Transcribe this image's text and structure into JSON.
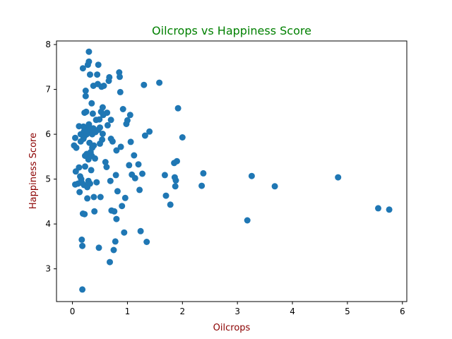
{
  "chart_data": {
    "type": "scatter",
    "title": "Oilcrops vs Happiness Score",
    "xlabel": "Oilcrops",
    "ylabel": "Happiness Score",
    "xlim": [
      -0.29,
      6.08
    ],
    "ylim": [
      2.27,
      8.08
    ],
    "xticks": [
      0,
      1,
      2,
      3,
      4,
      5,
      6
    ],
    "yticks": [
      3,
      4,
      5,
      6,
      7,
      8
    ],
    "grid": false,
    "colors": {
      "points": "#1f77b4",
      "title": "#008000",
      "axis_labels": "#8b0000",
      "axes": "#000000"
    },
    "points": [
      [
        0.03,
        5.75
      ],
      [
        0.05,
        5.92
      ],
      [
        0.06,
        5.17
      ],
      [
        0.05,
        4.88
      ],
      [
        0.07,
        5.7
      ],
      [
        0.1,
        4.9
      ],
      [
        0.12,
        6.18
      ],
      [
        0.12,
        5.26
      ],
      [
        0.13,
        4.71
      ],
      [
        0.14,
        5.06
      ],
      [
        0.15,
        6.0
      ],
      [
        0.15,
        5.84
      ],
      [
        0.16,
        5.0
      ],
      [
        0.17,
        4.92
      ],
      [
        0.17,
        3.65
      ],
      [
        0.18,
        3.51
      ],
      [
        0.18,
        2.54
      ],
      [
        0.19,
        4.23
      ],
      [
        0.19,
        7.47
      ],
      [
        0.2,
        6.17
      ],
      [
        0.2,
        5.9
      ],
      [
        0.21,
        6.06
      ],
      [
        0.21,
        4.87
      ],
      [
        0.22,
        6.48
      ],
      [
        0.22,
        5.96
      ],
      [
        0.22,
        4.22
      ],
      [
        0.23,
        5.28
      ],
      [
        0.23,
        5.52
      ],
      [
        0.24,
        6.85
      ],
      [
        0.24,
        6.97
      ],
      [
        0.25,
        6.5
      ],
      [
        0.25,
        6.13
      ],
      [
        0.26,
        6.0
      ],
      [
        0.26,
        5.56
      ],
      [
        0.27,
        4.82
      ],
      [
        0.27,
        4.57
      ],
      [
        0.28,
        7.55
      ],
      [
        0.28,
        6.07
      ],
      [
        0.29,
        5.44
      ],
      [
        0.29,
        4.96
      ],
      [
        0.3,
        7.84
      ],
      [
        0.3,
        7.62
      ],
      [
        0.3,
        6.22
      ],
      [
        0.31,
        6.15
      ],
      [
        0.31,
        5.81
      ],
      [
        0.32,
        4.9
      ],
      [
        0.32,
        7.33
      ],
      [
        0.33,
        6.1
      ],
      [
        0.33,
        5.6
      ],
      [
        0.34,
        5.2
      ],
      [
        0.35,
        6.69
      ],
      [
        0.35,
        5.52
      ],
      [
        0.36,
        6.0
      ],
      [
        0.36,
        5.7
      ],
      [
        0.37,
        6.46
      ],
      [
        0.38,
        7.08
      ],
      [
        0.38,
        6.13
      ],
      [
        0.39,
        5.75
      ],
      [
        0.39,
        4.6
      ],
      [
        0.4,
        4.28
      ],
      [
        0.41,
        5.46
      ],
      [
        0.42,
        6.05
      ],
      [
        0.43,
        6.32
      ],
      [
        0.44,
        4.93
      ],
      [
        0.45,
        7.33
      ],
      [
        0.46,
        7.12
      ],
      [
        0.47,
        7.55
      ],
      [
        0.47,
        6.1
      ],
      [
        0.48,
        3.47
      ],
      [
        0.49,
        6.33
      ],
      [
        0.5,
        6.15
      ],
      [
        0.5,
        5.79
      ],
      [
        0.51,
        4.6
      ],
      [
        0.52,
        6.5
      ],
      [
        0.53,
        7.06
      ],
      [
        0.54,
        5.88
      ],
      [
        0.55,
        6.6
      ],
      [
        0.55,
        6.01
      ],
      [
        0.56,
        6.43
      ],
      [
        0.57,
        7.08
      ],
      [
        0.6,
        5.38
      ],
      [
        0.62,
        5.27
      ],
      [
        0.63,
        6.48
      ],
      [
        0.64,
        6.2
      ],
      [
        0.66,
        7.19
      ],
      [
        0.67,
        7.27
      ],
      [
        0.68,
        3.15
      ],
      [
        0.69,
        4.96
      ],
      [
        0.7,
        6.32
      ],
      [
        0.7,
        5.9
      ],
      [
        0.71,
        4.3
      ],
      [
        0.73,
        5.84
      ],
      [
        0.75,
        3.42
      ],
      [
        0.76,
        4.28
      ],
      [
        0.78,
        3.61
      ],
      [
        0.79,
        5.09
      ],
      [
        0.8,
        5.64
      ],
      [
        0.8,
        4.11
      ],
      [
        0.82,
        4.73
      ],
      [
        0.85,
        7.38
      ],
      [
        0.86,
        7.28
      ],
      [
        0.87,
        6.94
      ],
      [
        0.88,
        5.72
      ],
      [
        0.9,
        4.4
      ],
      [
        0.92,
        6.56
      ],
      [
        0.94,
        3.81
      ],
      [
        0.96,
        4.58
      ],
      [
        0.98,
        6.23
      ],
      [
        1.0,
        6.31
      ],
      [
        1.03,
        5.31
      ],
      [
        1.05,
        6.43
      ],
      [
        1.06,
        5.83
      ],
      [
        1.08,
        5.1
      ],
      [
        1.12,
        5.53
      ],
      [
        1.14,
        5.02
      ],
      [
        1.2,
        5.33
      ],
      [
        1.22,
        4.76
      ],
      [
        1.24,
        3.84
      ],
      [
        1.27,
        5.12
      ],
      [
        1.3,
        7.1
      ],
      [
        1.32,
        5.97
      ],
      [
        1.35,
        3.6
      ],
      [
        1.4,
        6.06
      ],
      [
        1.58,
        7.15
      ],
      [
        1.68,
        5.09
      ],
      [
        1.7,
        4.63
      ],
      [
        1.78,
        4.43
      ],
      [
        1.85,
        5.36
      ],
      [
        1.86,
        5.04
      ],
      [
        1.87,
        4.84
      ],
      [
        1.88,
        4.97
      ],
      [
        1.9,
        5.4
      ],
      [
        1.92,
        6.58
      ],
      [
        2.0,
        5.93
      ],
      [
        2.35,
        4.85
      ],
      [
        2.38,
        5.13
      ],
      [
        3.18,
        4.08
      ],
      [
        3.26,
        5.07
      ],
      [
        3.68,
        4.84
      ],
      [
        4.83,
        5.04
      ],
      [
        5.56,
        4.35
      ],
      [
        5.76,
        4.32
      ]
    ]
  }
}
